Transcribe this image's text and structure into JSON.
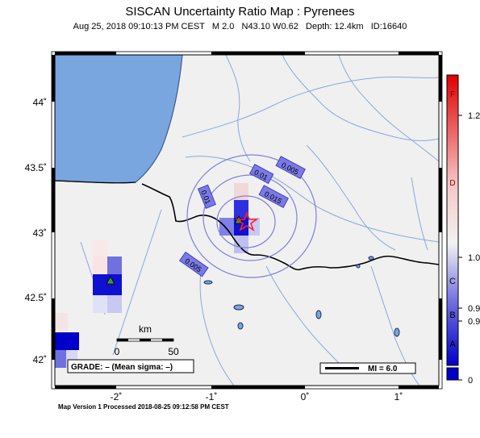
{
  "title": "SISCAN Uncertainty Ratio Map : Pyrenees",
  "subtitle": "Aug 25, 2018 09:10:13 PM CEST   M 2.0   N43.10 W0.62   Depth: 12.4km   ID:16640",
  "footer": "Map Version 1 Processed 2018-08-25 09:12:58 PM CEST",
  "map": {
    "lat_labels": [
      "44˚",
      "43.5˚",
      "43˚",
      "42.5˚",
      "42˚"
    ],
    "lon_labels": [
      "-2˚",
      "-1˚",
      "0˚",
      "1˚"
    ],
    "contour_labels": [
      "0.005",
      "0.01",
      "0.015",
      "0.01",
      "0.005"
    ],
    "scale_unit": "km",
    "scale_ticks": [
      "0",
      "50"
    ],
    "grade_box": "GRADE: – (Mean sigma: –)",
    "mi_box": "MI = 6.0",
    "colors": {
      "sea": "#7aa6e0",
      "land": "#f0f0f0",
      "river": "#8aa8d8",
      "contour": "#7e7ee0",
      "epicenter": "#ff2020"
    }
  },
  "colorbar": {
    "grade_letters": [
      "F",
      "D",
      "C",
      "B",
      "A"
    ],
    "values": [
      "1.2",
      "1.0",
      "0.9",
      "0.9",
      "0"
    ]
  }
}
